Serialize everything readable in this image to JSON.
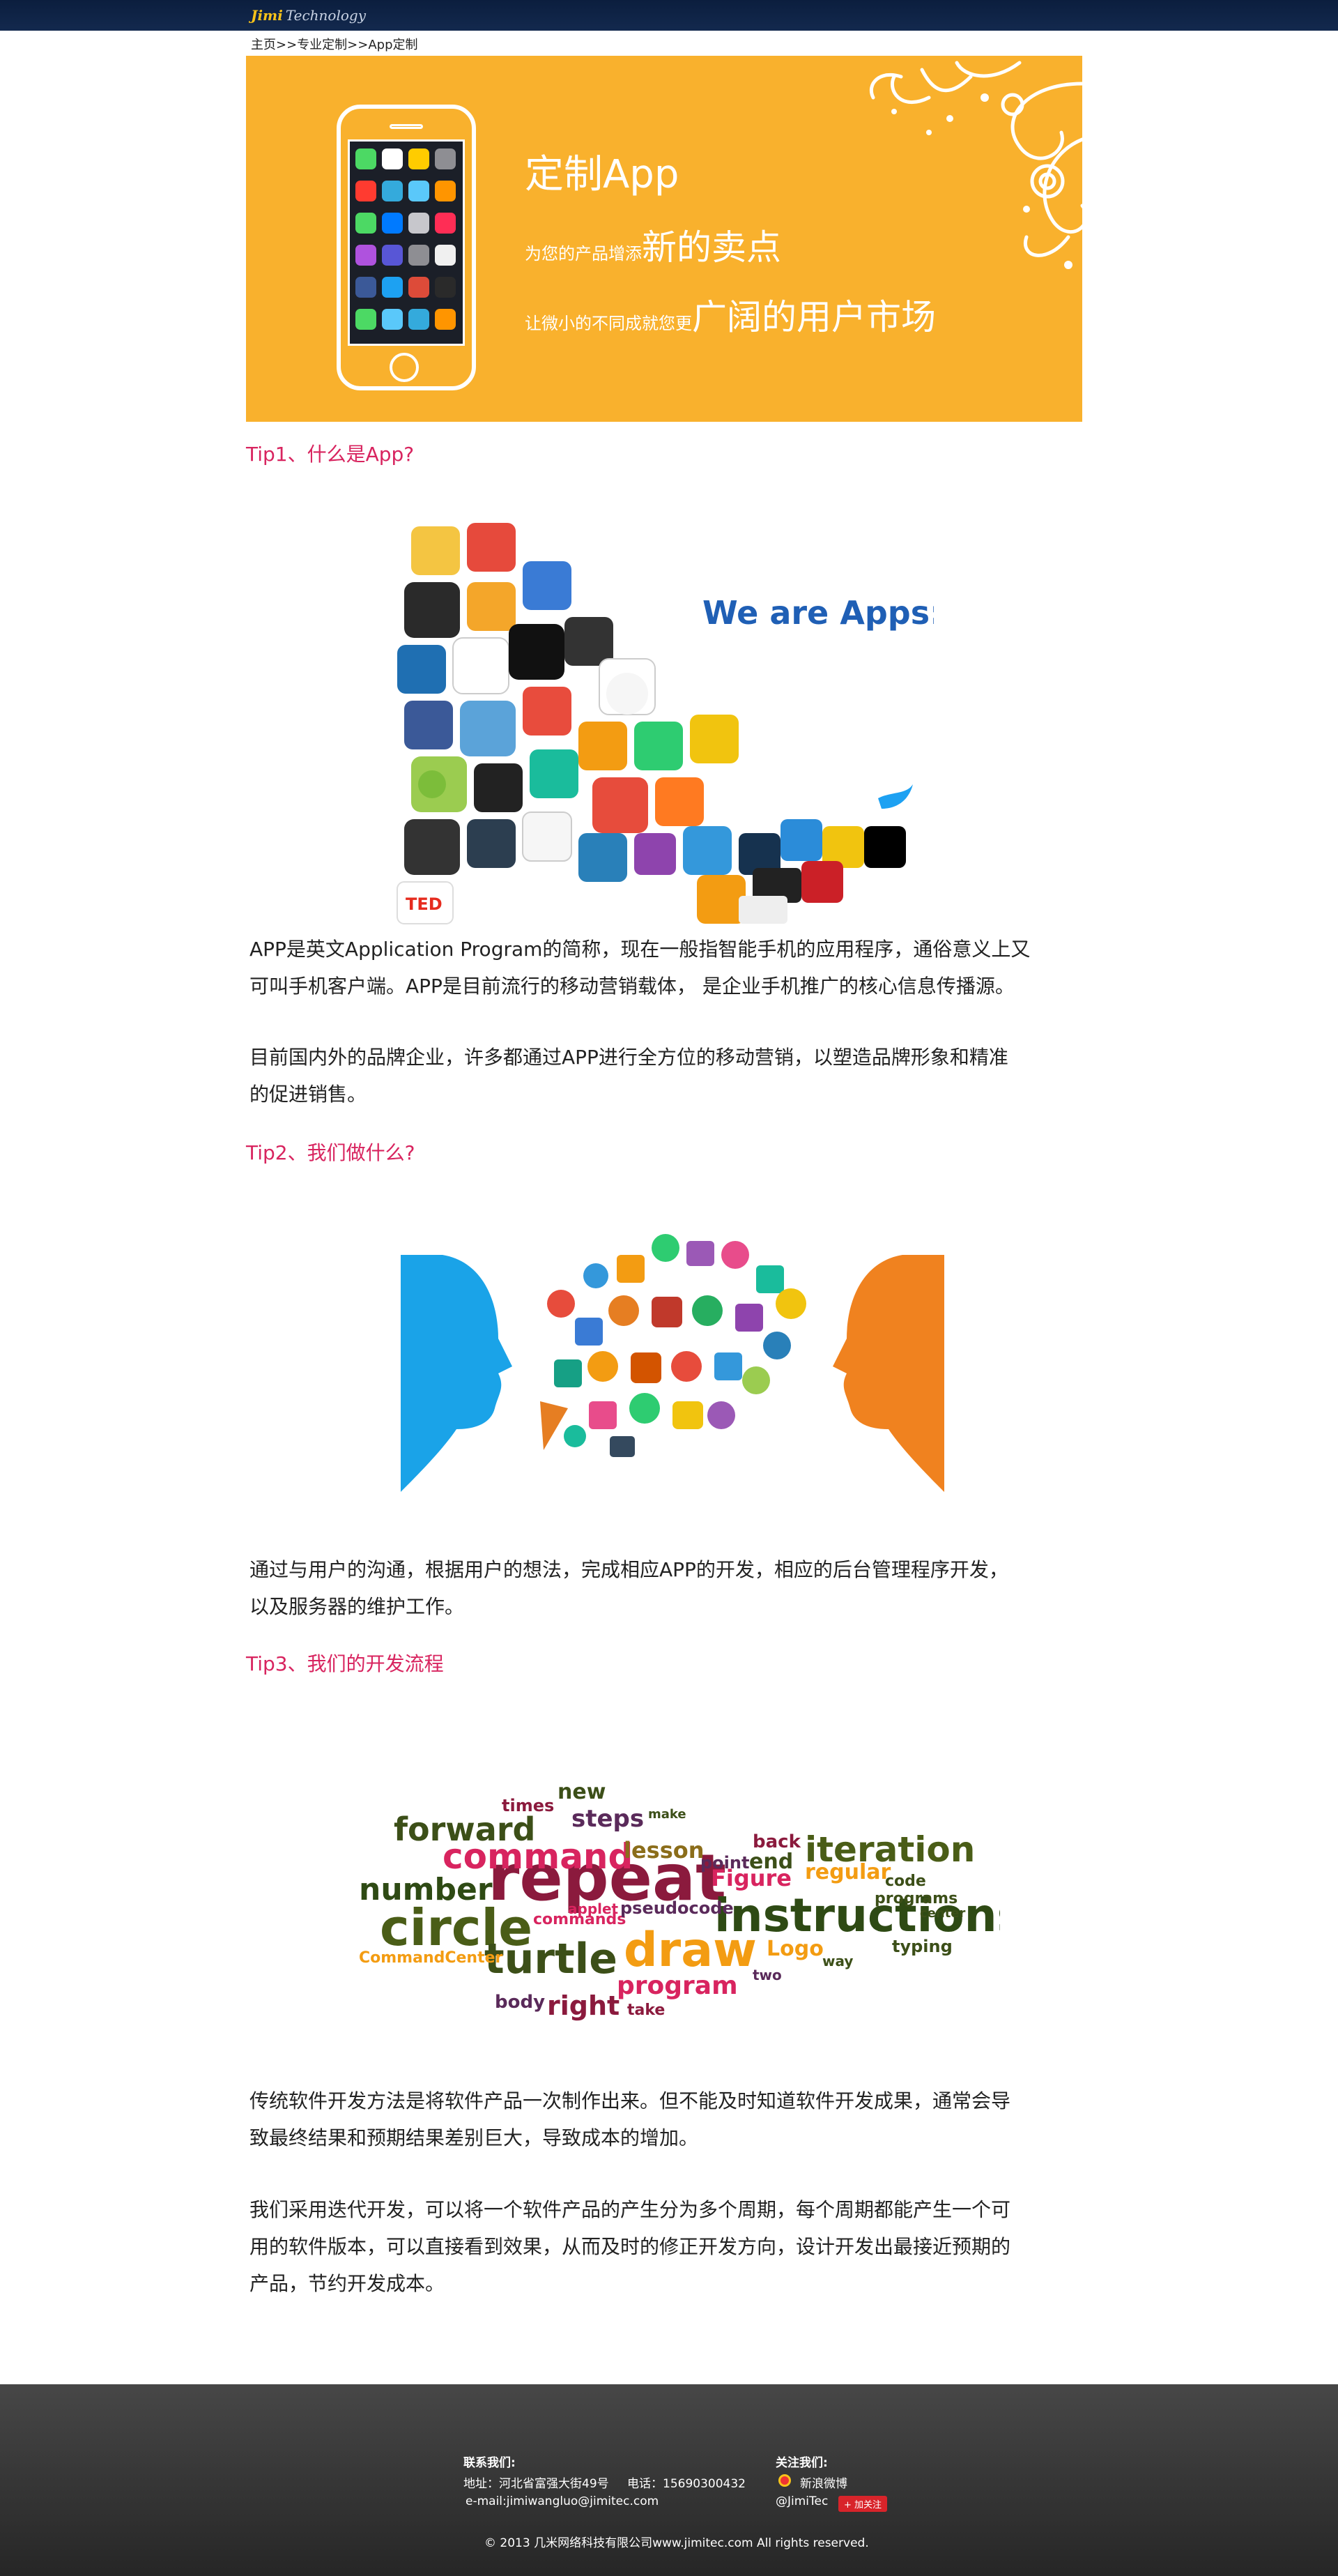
{
  "header": {
    "logo_part1": "Jimi",
    "logo_part2": "Technology"
  },
  "breadcrumb": {
    "home": "主页",
    "sep": ">>",
    "level1": "专业定制",
    "level2": "App定制"
  },
  "banner": {
    "title": "定制App",
    "line1_small": "为您的产品增添",
    "line1_big": "新的卖点",
    "line2_small": "让微小的不同成就您更",
    "line2_big": "广阔的用户市场"
  },
  "sections": [
    {
      "tip": "Tip1、什么是App?",
      "figure_caption": "We are Apps:)",
      "paragraphs": [
        [
          "APP是英文Application Program的简称，现在一般指智能手机的应用程序，通俗意义上又",
          "可叫手机客户端。APP是目前流行的移动营销载体， 是企业手机推广的核心信息传播源。"
        ],
        [
          "目前国内外的品牌企业，许多都通过APP进行全方位的移动营销，以塑造品牌形象和精准",
          "的促进销售。"
        ]
      ]
    },
    {
      "tip": "Tip2、我们做什么?",
      "paragraphs": [
        [
          "通过与用户的沟通，根据用户的想法，完成相应APP的开发，相应的后台管理程序开发，",
          "以及服务器的维护工作。"
        ]
      ]
    },
    {
      "tip": "Tip3、我们的开发流程",
      "word_cloud": [
        "repeat",
        "instructions",
        "circle",
        "draw",
        "turtle",
        "command",
        "iteration",
        "forward",
        "number",
        "program",
        "steps",
        "lesson",
        "Figure",
        "right",
        "body",
        "regular",
        "new",
        "times",
        "end",
        "point",
        "make",
        "Logo",
        "commands",
        "applet",
        "pseudocode",
        "typing",
        "CommandCenter",
        "two",
        "back",
        "take",
        "way",
        "code",
        "programs",
        "center"
      ],
      "paragraphs": [
        [
          "传统软件开发方法是将软件产品一次制作出来。但不能及时知道软件开发成果，通常会导",
          "致最终结果和预期结果差别巨大，导致成本的增加。"
        ],
        [
          "我们采用迭代开发，可以将一个软件产品的产生分为多个周期，每个周期都能产生一个可",
          "用的软件版本，可以直接看到效果，从而及时的修正开发方向，设计开发出最接近预期的",
          "产品，节约开发成本。"
        ]
      ]
    }
  ],
  "footer": {
    "contact_label": "联系我们:",
    "address": "地址：河北省富强大街49号",
    "phone": "电话：15690300432",
    "email": "e-mail:jimiwangluo@jimitec.com",
    "follow_label": "关注我们:",
    "weibo": "新浪微博",
    "weibo_account": "@JimiTec",
    "follow_button": "+ 加关注",
    "copyright": "© 2013 几米网络科技有限公司www.jimitec.com All rights reserved."
  },
  "colors": {
    "topbar": "#0b1e3e",
    "banner": "#f9b12d",
    "tip": "#d8245f",
    "footer": "#333333"
  }
}
